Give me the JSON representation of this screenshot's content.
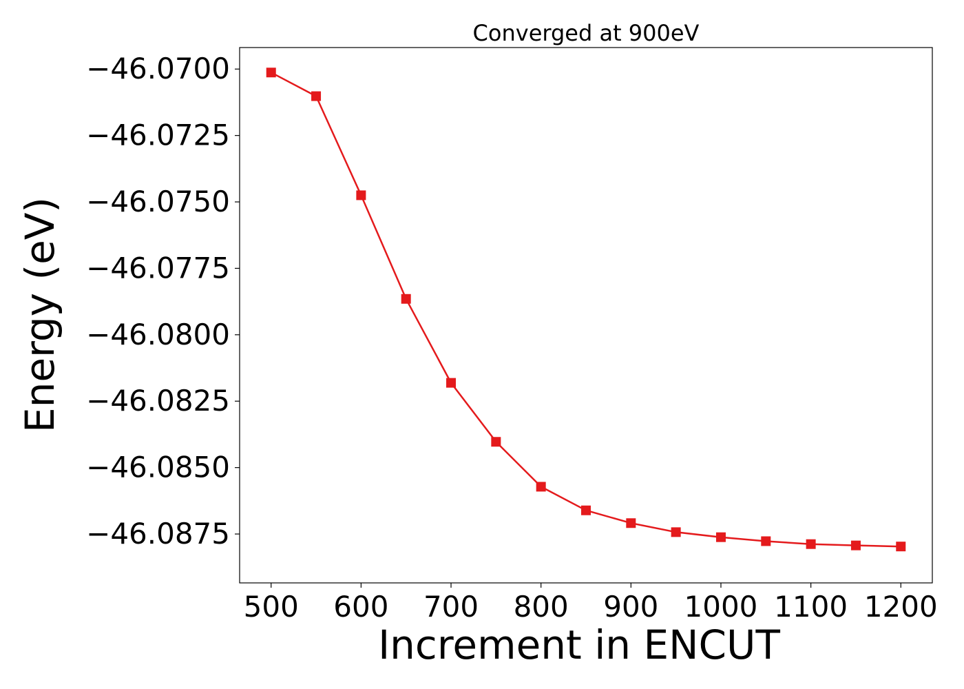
{
  "chart_data": {
    "type": "line",
    "title": "Converged at 900eV",
    "xlabel": "Increment in ENCUT",
    "ylabel": "Energy (eV)",
    "xlim": [
      465,
      1235
    ],
    "ylim": [
      -46.08934,
      -46.06919
    ],
    "x_ticks": [
      500,
      600,
      700,
      800,
      900,
      1000,
      1100,
      1200
    ],
    "x_tick_labels": [
      "500",
      "600",
      "700",
      "800",
      "900",
      "1000",
      "1100",
      "1200"
    ],
    "y_ticks": [
      -46.07,
      -46.0725,
      -46.075,
      -46.0775,
      -46.08,
      -46.0825,
      -46.085,
      -46.0875
    ],
    "y_tick_labels": [
      "−46.0700",
      "−46.0725",
      "−46.0750",
      "−46.0775",
      "−46.0800",
      "−46.0825",
      "−46.0850",
      "−46.0875"
    ],
    "grid": false,
    "series": [
      {
        "color": "#e41a1c",
        "marker": "square",
        "x": [
          500,
          550,
          600,
          650,
          700,
          750,
          800,
          850,
          900,
          950,
          1000,
          1050,
          1100,
          1150,
          1200
        ],
        "values": [
          -46.07013,
          -46.07102,
          -46.07475,
          -46.07865,
          -46.08181,
          -46.08403,
          -46.08572,
          -46.08661,
          -46.08709,
          -46.08743,
          -46.08762,
          -46.08777,
          -46.08788,
          -46.08793,
          -46.08797
        ]
      }
    ]
  }
}
